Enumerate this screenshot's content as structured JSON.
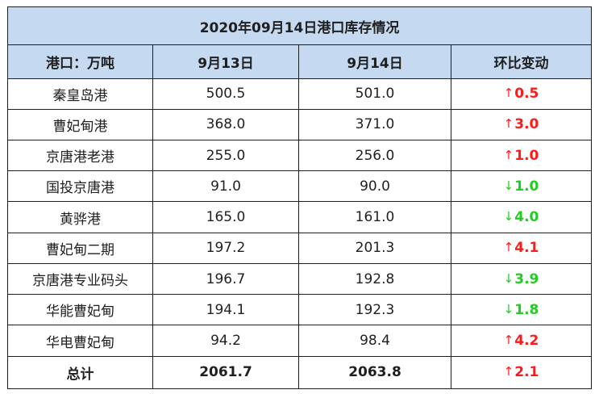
{
  "table": {
    "title": "2020年09月14日港口库存情况",
    "headers": [
      "港口：万吨",
      "9月13日",
      "9月14日",
      "环比变动"
    ],
    "rows": [
      {
        "port": "秦皇岛港",
        "d13": "500.5",
        "d14": "501.0",
        "change": "0.5",
        "direction": "up",
        "arrow_icon": "up-arrow-icon"
      },
      {
        "port": "曹妃甸港",
        "d13": "368.0",
        "d14": "371.0",
        "change": "3.0",
        "direction": "up",
        "arrow_icon": "up-arrow-icon"
      },
      {
        "port": "京唐港老港",
        "d13": "255.0",
        "d14": "256.0",
        "change": "1.0",
        "direction": "up",
        "arrow_icon": "up-arrow-icon"
      },
      {
        "port": "国投京唐港",
        "d13": "91.0",
        "d14": "90.0",
        "change": "1.0",
        "direction": "down",
        "arrow_icon": "down-arrow-icon"
      },
      {
        "port": "黄骅港",
        "d13": "165.0",
        "d14": "161.0",
        "change": "4.0",
        "direction": "down",
        "arrow_icon": "down-arrow-icon"
      },
      {
        "port": "曹妃甸二期",
        "d13": "197.2",
        "d14": "201.3",
        "change": "4.1",
        "direction": "up",
        "arrow_icon": "up-arrow-icon"
      },
      {
        "port": "京唐港专业码头",
        "d13": "196.7",
        "d14": "192.8",
        "change": "3.9",
        "direction": "down",
        "arrow_icon": "down-arrow-icon"
      },
      {
        "port": "华能曹妃甸",
        "d13": "194.1",
        "d14": "192.3",
        "change": "1.8",
        "direction": "down",
        "arrow_icon": "down-arrow-icon"
      },
      {
        "port": "华电曹妃甸",
        "d13": "94.2",
        "d14": "98.4",
        "change": "4.2",
        "direction": "up",
        "arrow_icon": "up-arrow-icon"
      }
    ],
    "total": {
      "label": "总计",
      "d13": "2061.7",
      "d14": "2063.8",
      "change": "2.1",
      "direction": "up",
      "arrow_icon": "up-arrow-icon"
    }
  },
  "colors": {
    "header_bg": "#c5d9f1",
    "up": "#ff1a1a",
    "down": "#22cc22",
    "border": "#1f1f1f"
  }
}
